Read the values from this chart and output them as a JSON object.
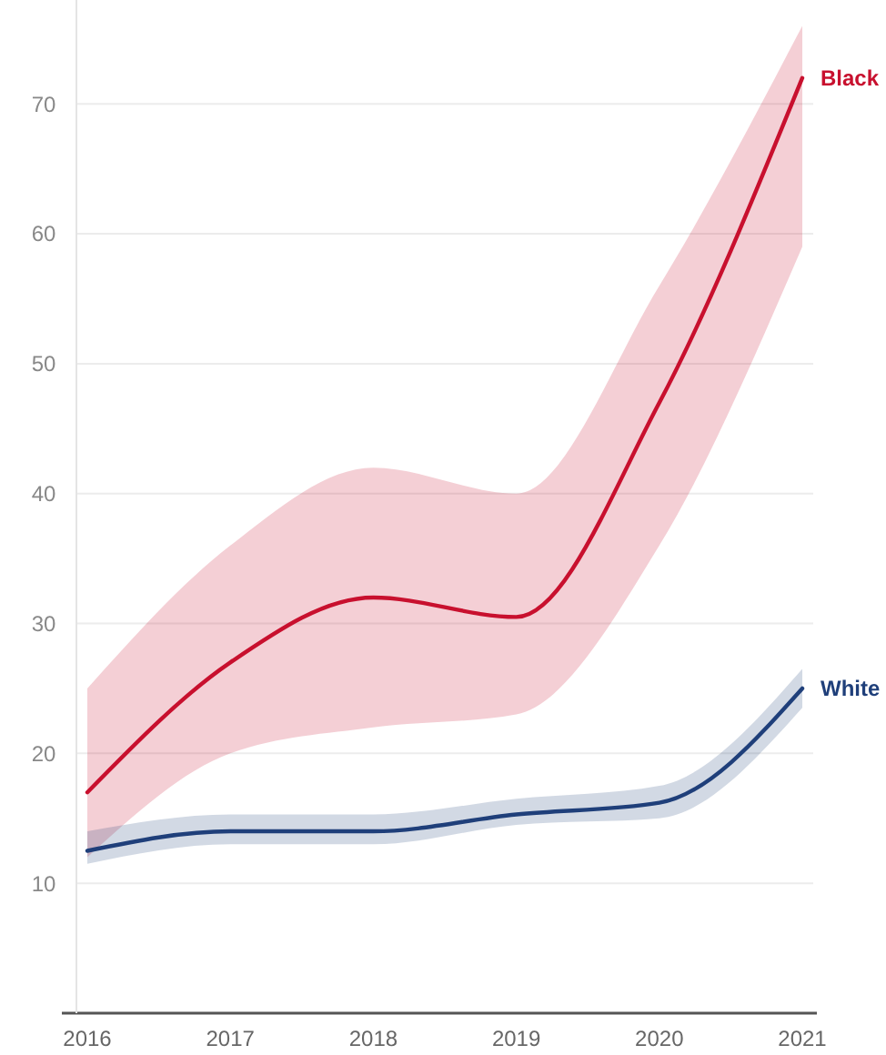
{
  "chart_data": {
    "type": "line",
    "categories": [
      "2016",
      "2017",
      "2018",
      "2019",
      "2020",
      "2021"
    ],
    "ylim": [
      0,
      78
    ],
    "yticks": [
      10,
      20,
      30,
      40,
      50,
      60,
      70
    ],
    "grid": "y",
    "legend": false,
    "marker": "none",
    "line_style": "solid",
    "series": [
      {
        "name": "Black",
        "color": "#c8102e",
        "values": [
          17,
          27,
          32,
          30.5,
          47,
          72
        ],
        "lower": [
          12,
          20,
          22,
          23,
          36,
          59
        ],
        "upper": [
          25,
          36,
          42,
          40,
          56,
          76
        ]
      },
      {
        "name": "White",
        "color": "#1f3f7a",
        "values": [
          12.5,
          14,
          14,
          15.3,
          16.2,
          25
        ],
        "lower": [
          11.5,
          13,
          13,
          14.5,
          15,
          23.5
        ],
        "upper": [
          14,
          15.3,
          15.3,
          16.5,
          17.5,
          26.5
        ]
      }
    ]
  }
}
